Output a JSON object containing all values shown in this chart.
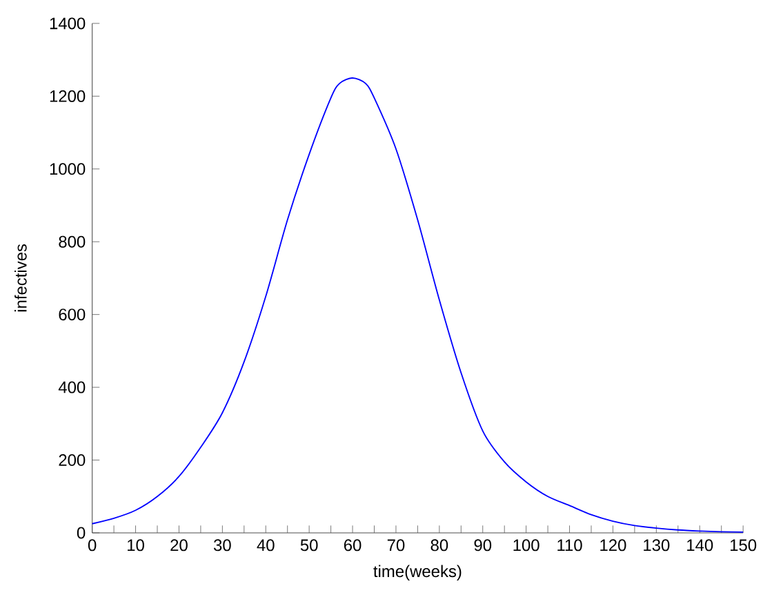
{
  "chart_data": {
    "type": "line",
    "xlabel": "time(weeks)",
    "ylabel": "infectives",
    "x": [
      0,
      5,
      10,
      15,
      20,
      25,
      30,
      35,
      40,
      45,
      50,
      55,
      57,
      60,
      63,
      65,
      70,
      75,
      80,
      85,
      90,
      95,
      100,
      105,
      110,
      115,
      120,
      125,
      130,
      135,
      140,
      145,
      150
    ],
    "series": [
      {
        "color": "#0000ff",
        "values": [
          25,
          40,
          62,
          100,
          155,
          235,
          330,
          470,
          650,
          860,
          1040,
          1195,
          1235,
          1250,
          1235,
          1195,
          1055,
          860,
          640,
          440,
          280,
          195,
          140,
          100,
          75,
          50,
          32,
          20,
          13,
          8,
          5,
          3,
          2
        ]
      }
    ],
    "xlim": [
      0,
      150
    ],
    "ylim": [
      0,
      1400
    ],
    "xticks": [
      0,
      {
        "value": 5,
        "label": null
      },
      10,
      {
        "value": 15,
        "label": null
      },
      20,
      {
        "value": 25,
        "label": null
      },
      30,
      {
        "value": 35,
        "label": null
      },
      40,
      {
        "value": 45,
        "label": null
      },
      50,
      {
        "value": 55,
        "label": null
      },
      60,
      {
        "value": 65,
        "label": null
      },
      70,
      {
        "value": 75,
        "label": null
      },
      80,
      {
        "value": 85,
        "label": null
      },
      90,
      {
        "value": 95,
        "label": null
      },
      100,
      {
        "value": 105,
        "label": null
      },
      110,
      {
        "value": 115,
        "label": null
      },
      120,
      {
        "value": 125,
        "label": null
      },
      130,
      {
        "value": 135,
        "label": null
      },
      140,
      {
        "value": 145,
        "label": null
      },
      150
    ],
    "yticks": [
      0,
      200,
      400,
      600,
      800,
      1000,
      1200,
      1400
    ],
    "marker": "none",
    "line_style": "solid"
  }
}
